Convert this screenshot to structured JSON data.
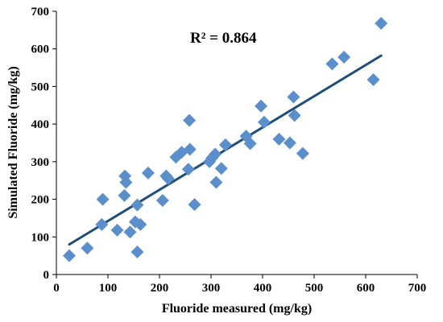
{
  "chart_data": {
    "type": "scatter",
    "title": "",
    "xlabel": "Fluoride measured (mg/kg)",
    "ylabel": "Simulated Fluoride (mg/kg)",
    "xlim": [
      0,
      700
    ],
    "ylim": [
      0,
      700
    ],
    "x_ticks": [
      "0",
      "100",
      "200",
      "300",
      "400",
      "500",
      "600",
      "700"
    ],
    "y_ticks": [
      "0",
      "100",
      "200",
      "300",
      "400",
      "500",
      "600",
      "700"
    ],
    "grid": false,
    "legend": "none",
    "annotation": "R² = 0.864",
    "marker_color": "#5b8fcc",
    "trendline_color": "#1f4e79",
    "trendline": {
      "x": [
        25,
        630
      ],
      "y": [
        80,
        582
      ]
    },
    "points": [
      {
        "x": 25,
        "y": 50
      },
      {
        "x": 60,
        "y": 70
      },
      {
        "x": 88,
        "y": 133
      },
      {
        "x": 90,
        "y": 200
      },
      {
        "x": 118,
        "y": 118
      },
      {
        "x": 132,
        "y": 210
      },
      {
        "x": 133,
        "y": 262
      },
      {
        "x": 135,
        "y": 245
      },
      {
        "x": 143,
        "y": 113
      },
      {
        "x": 153,
        "y": 140
      },
      {
        "x": 157,
        "y": 185
      },
      {
        "x": 157,
        "y": 60
      },
      {
        "x": 163,
        "y": 133
      },
      {
        "x": 178,
        "y": 270
      },
      {
        "x": 206,
        "y": 197
      },
      {
        "x": 213,
        "y": 262
      },
      {
        "x": 217,
        "y": 255
      },
      {
        "x": 232,
        "y": 312
      },
      {
        "x": 243,
        "y": 325
      },
      {
        "x": 256,
        "y": 280
      },
      {
        "x": 258,
        "y": 410
      },
      {
        "x": 259,
        "y": 333
      },
      {
        "x": 268,
        "y": 186
      },
      {
        "x": 297,
        "y": 300
      },
      {
        "x": 302,
        "y": 310
      },
      {
        "x": 308,
        "y": 320
      },
      {
        "x": 310,
        "y": 245
      },
      {
        "x": 320,
        "y": 282
      },
      {
        "x": 328,
        "y": 345
      },
      {
        "x": 368,
        "y": 368
      },
      {
        "x": 376,
        "y": 348
      },
      {
        "x": 397,
        "y": 448
      },
      {
        "x": 403,
        "y": 405
      },
      {
        "x": 432,
        "y": 360
      },
      {
        "x": 453,
        "y": 350
      },
      {
        "x": 460,
        "y": 472
      },
      {
        "x": 462,
        "y": 423
      },
      {
        "x": 478,
        "y": 322
      },
      {
        "x": 535,
        "y": 560
      },
      {
        "x": 558,
        "y": 578
      },
      {
        "x": 615,
        "y": 518
      },
      {
        "x": 630,
        "y": 668
      }
    ]
  }
}
